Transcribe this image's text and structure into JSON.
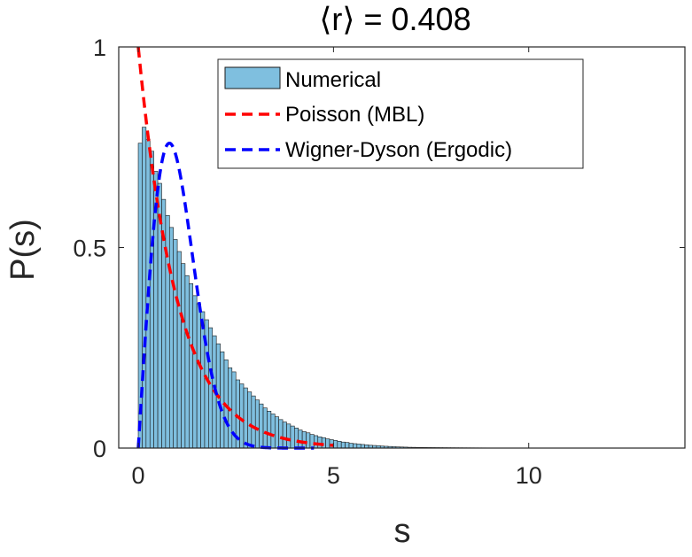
{
  "chart_data": {
    "type": "bar",
    "title": "⟨r⟩ = 0.408",
    "xlabel": "s",
    "ylabel": "P(s)",
    "xlim": [
      -0.5,
      14
    ],
    "ylim": [
      0,
      1
    ],
    "xticks": [
      0,
      5,
      10
    ],
    "yticks": [
      0,
      0.5,
      1
    ],
    "xtick_labels": [
      "0",
      "5",
      "10"
    ],
    "ytick_labels": [
      "0",
      "0.5",
      "1"
    ],
    "grid": false,
    "legend_position": "top-right",
    "histogram": {
      "name": "Numerical",
      "color": "#7fbfdf",
      "edge_color": "#1a1a1a",
      "bin_width": 0.1,
      "x_start": 0.0,
      "values": [
        0.76,
        0.8,
        0.77,
        0.74,
        0.69,
        0.66,
        0.62,
        0.58,
        0.55,
        0.52,
        0.49,
        0.46,
        0.43,
        0.41,
        0.38,
        0.36,
        0.34,
        0.32,
        0.3,
        0.28,
        0.26,
        0.24,
        0.22,
        0.2,
        0.19,
        0.17,
        0.16,
        0.15,
        0.14,
        0.13,
        0.12,
        0.11,
        0.1,
        0.092,
        0.085,
        0.078,
        0.071,
        0.065,
        0.06,
        0.055,
        0.05,
        0.045,
        0.041,
        0.038,
        0.034,
        0.031,
        0.028,
        0.026,
        0.023,
        0.021,
        0.019,
        0.017,
        0.015,
        0.014,
        0.012,
        0.011,
        0.01,
        0.009,
        0.008,
        0.007,
        0.0065,
        0.006,
        0.005,
        0.0045,
        0.004,
        0.0035,
        0.003,
        0.0027,
        0.0024,
        0.002
      ],
      "tail_until": 13.4
    },
    "series": [
      {
        "name": "Poisson (MBL)",
        "color": "#ff0000",
        "style": "dashed",
        "formula": "exp(-s)",
        "x_range": [
          0,
          5
        ]
      },
      {
        "name": "Wigner-Dyson (Ergodic)",
        "color": "#0000ff",
        "style": "dashed",
        "formula": "(pi/2) s exp(-pi s^2 / 4)",
        "x_range": [
          0,
          4.5
        ]
      }
    ]
  }
}
